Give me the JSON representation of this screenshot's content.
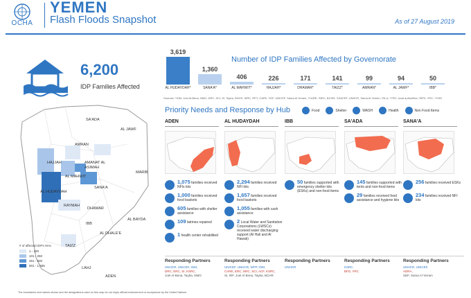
{
  "header": {
    "org": "OCHA",
    "country": "YEMEN",
    "subtitle": "Flash Floods Snapshot",
    "as_of": "As of  27 August 2019",
    "accent_color": "#2f76c2"
  },
  "headline": {
    "value": "6,200",
    "label": "IDP Families Affected",
    "icon": "flooded-house-icon"
  },
  "chart_data": {
    "type": "bar",
    "title": "Number of IDP Families Affected by Governorate",
    "categories": [
      "AL HUDAYDAH*",
      "SANA'A*",
      "AL MAHWIT*",
      "HAJJAH*",
      "DHAMAR*",
      "TAIZZ*",
      "AMRAN*",
      "AL JAWF*",
      "IBB*"
    ],
    "values": [
      3619,
      1360,
      406,
      226,
      171,
      141,
      99,
      94,
      50
    ],
    "value_labels": [
      "3,619",
      "1,360",
      "406",
      "226",
      "171",
      "141",
      "99",
      "94",
      "50"
    ],
    "source": "Sources: *IOM, Joel Al-Bena, NMO, DRC, SCI, SI, Tayba, BHCR, WRC, RPY, CAPE; *IOF, UNICEF, Sama Al Yemen; *CARE; *NRC, BCHR; *UNICEF, UNHCR, Sama Al Yemen; *DLU; *YRC; local authorities; *BFD, YRC; *YHM",
    "colors": {
      "top": "#3a7fc8",
      "rest": "#b9d1ee"
    }
  },
  "map": {
    "labels": [
      "SA'ADA",
      "AL JAWF",
      "AMRAN",
      "HAJJAH",
      "AMANAT AL ASIMAH",
      "AL MAHWIT",
      "SANA'A",
      "MARIB",
      "AL HUDAYDAH",
      "RAYMAH",
      "DHAMAR",
      "IBB",
      "AL BAYDA",
      "AL DHALE'E",
      "TAIZZ",
      "LAHJ",
      "ADEN"
    ],
    "legend": {
      "title": "# of affected IDPs HHs",
      "ranges": [
        "1 - 100",
        "101 - 250",
        "251 - 500",
        "501 - 1,555"
      ],
      "colors": [
        "#dfe9f6",
        "#a9c6ea",
        "#5d97d5",
        "#2f6fb8"
      ]
    }
  },
  "priority": {
    "title": "Priority Needs and Response by Hub",
    "legend": [
      {
        "label": "Food",
        "icon": "food-icon"
      },
      {
        "label": "Shelter",
        "icon": "shelter-icon"
      },
      {
        "label": "WASH",
        "icon": "wash-icon"
      },
      {
        "label": "Health",
        "icon": "health-icon"
      },
      {
        "label": "Non Food Items",
        "icon": "nfi-icon"
      }
    ],
    "hubs": [
      {
        "name": "ADEN",
        "items": [
          {
            "num": "1,075",
            "text": "families received NFIs kits"
          },
          {
            "num": "1,000",
            "text": "families received food baskets"
          },
          {
            "num": "605",
            "text": "families with shelter assistance"
          },
          {
            "num": "109",
            "text": "latrines repaired"
          },
          {
            "num": "1",
            "text": "health center rehabilited"
          }
        ],
        "partners": [
          "UNHCR, UNICEF, IOM,",
          "DRC, ERC, SI, KSRC,",
          "Joel Al-Bena, Tayba, NMO"
        ]
      },
      {
        "name": "AL HUDAYDAH",
        "items": [
          {
            "num": "2,294",
            "text": "families received NFI kits"
          },
          {
            "num": "1,657",
            "text": "families received food baskets"
          },
          {
            "num": "1,055",
            "text": "families with cash assistance"
          },
          {
            "num": "2",
            "text": "Local Water and Sanitation Corporations (LWSCs) received water discharging support (Al Hali and Al Hawak)"
          }
        ],
        "partners": [
          "UNICEF, UNHCR, WFP, IOM,",
          "CARE, ERC, NRC, SCI, ACF, KSRC,",
          "SI, IRF, Joel Al Bena, Tayba, BCHR"
        ]
      },
      {
        "name": "IBB",
        "items": [
          {
            "num": "50",
            "text": "families supported with emergency shelter kits (ESKs) and non-food items"
          }
        ],
        "partners": [
          "UNHCR"
        ]
      },
      {
        "name": "SA'ADA",
        "items": [
          {
            "num": "145",
            "text": "families supported with tents and non-food items"
          },
          {
            "num": "29",
            "text": "families received food assistance and hygiene kits"
          }
        ],
        "partners": [
          "KSRC,",
          "BFD, YRC"
        ]
      },
      {
        "name": "SANA'A",
        "items": [
          {
            "num": "256",
            "text": "families received ESKs"
          },
          {
            "num": "234",
            "text": "families received NFI kits"
          }
        ],
        "partners": [
          "UNHCR, UNICEF,",
          "ADRA,",
          "SDF, Sama Al Yemen"
        ]
      }
    ],
    "partners_title": "Responding Partners",
    "hub_map_color": "#f26c4f"
  },
  "footer": "The boundaries and names shown and the designations used on this map do not imply official endorsement or acceptance by the United Nations."
}
